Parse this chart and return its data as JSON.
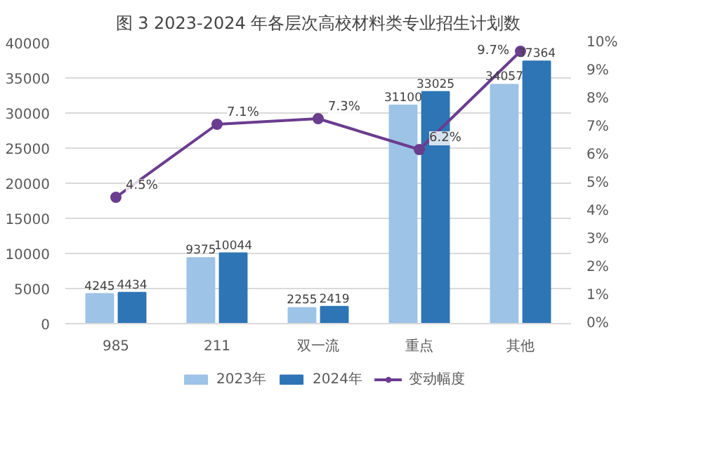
{
  "chart_data": {
    "type": "bar",
    "title": "图 3 2023-2024 年各层次高校材料类专业招生计划数",
    "categories": [
      "985",
      "211",
      "双一流",
      "重点",
      "其他"
    ],
    "series": [
      {
        "name": "2023年",
        "color": "#9dc3e6",
        "values": [
          4245,
          9375,
          2255,
          31100,
          34057
        ],
        "value_labels": [
          "4245",
          "9375",
          "2255",
          "31100",
          "34057"
        ]
      },
      {
        "name": "2024年",
        "color": "#2e75b6",
        "values": [
          4434,
          10044,
          2419,
          33025,
          37364
        ],
        "value_labels": [
          "4434",
          "10044",
          "2419",
          "33025",
          "37364"
        ]
      },
      {
        "name": "变动幅度",
        "type": "line",
        "axis": "y2",
        "color": "#6a3d8f",
        "values": [
          4.5,
          7.1,
          7.3,
          6.2,
          9.7
        ],
        "value_labels": [
          "4.5%",
          "7.1%",
          "7.3%",
          "6.2%",
          "9.7%"
        ]
      }
    ],
    "ylim": [
      0,
      40000
    ],
    "yticks": [
      0,
      5000,
      10000,
      15000,
      20000,
      25000,
      30000,
      35000,
      40000
    ],
    "y2lim": [
      0,
      10
    ],
    "y2ticks": [
      {
        "value": 0,
        "label": "0%"
      },
      {
        "value": 1,
        "label": "1%"
      },
      {
        "value": 2,
        "label": "2%"
      },
      {
        "value": 3,
        "label": "3%"
      },
      {
        "value": 4,
        "label": "4%"
      },
      {
        "value": 5,
        "label": "5%"
      },
      {
        "value": 6,
        "label": "6%"
      },
      {
        "value": 7,
        "label": "7%"
      },
      {
        "value": 8,
        "label": "8%"
      },
      {
        "value": 9,
        "label": "9%"
      },
      {
        "value": 10,
        "label": "10%"
      }
    ],
    "grid": "y",
    "legend": "bottom",
    "marker": "circle"
  }
}
